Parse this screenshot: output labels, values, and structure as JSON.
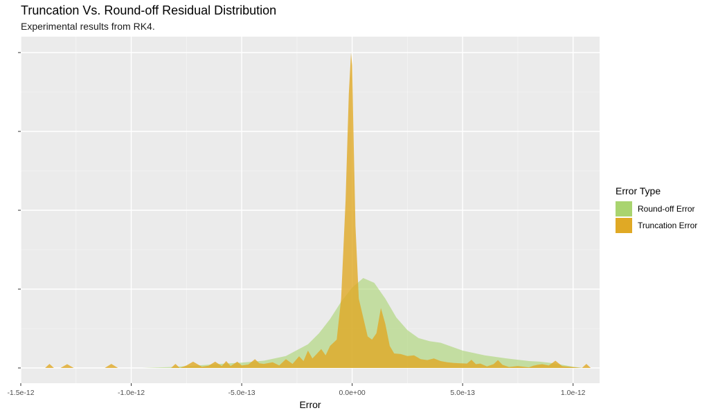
{
  "chart_data": {
    "type": "area",
    "title": "Truncation Vs. Round-off Residual Distribution",
    "subtitle": "Experimental results from RK4.",
    "xlabel": "Error",
    "ylabel": "",
    "xlim": [
      -1.5e-12,
      1.12e-12
    ],
    "ylim": [
      0,
      1.03
    ],
    "x_ticks": [
      -1.5e-12,
      -1e-12,
      -5e-13,
      0,
      5e-13,
      1e-12
    ],
    "x_tick_labels": [
      "-1.5e-12",
      "-1.0e-12",
      "-5.0e-13",
      "0.0e+00",
      "5.0e-13",
      "1.0e-12"
    ],
    "y_ticks": [
      0,
      0.25,
      0.5,
      0.75,
      1.0
    ],
    "grid": true,
    "legend": {
      "title": "Error Type",
      "position": "right"
    },
    "series": [
      {
        "name": "Round-off Error",
        "color": "#a9d46f",
        "x": [
          -1.38e-12,
          -9.5e-13,
          -8.2e-13,
          -7e-13,
          -6e-13,
          -5e-13,
          -4e-13,
          -3e-13,
          -2e-13,
          -1.5e-13,
          -1e-13,
          -5e-14,
          0,
          5e-14,
          1e-13,
          1.5e-13,
          2e-13,
          2.5e-13,
          3e-13,
          3.5e-13,
          4e-13,
          5e-13,
          6e-13,
          7e-13,
          8e-13,
          8.5e-13,
          9e-13,
          9.5e-13,
          1e-12,
          1.05e-12
        ],
        "y": [
          0.0,
          0.0,
          0.003,
          0.008,
          0.013,
          0.017,
          0.023,
          0.038,
          0.075,
          0.11,
          0.155,
          0.21,
          0.255,
          0.285,
          0.27,
          0.22,
          0.16,
          0.12,
          0.095,
          0.085,
          0.08,
          0.055,
          0.04,
          0.03,
          0.022,
          0.02,
          0.016,
          0.01,
          0.004,
          0.0
        ]
      },
      {
        "name": "Truncation Error",
        "color": "#e0a925",
        "x": [
          -1.39e-12,
          -1.37e-12,
          -1.35e-12,
          -1.32e-12,
          -1.29e-12,
          -1.26e-12,
          -1.12e-12,
          -1.09e-12,
          -1.06e-12,
          -8.2e-13,
          -8e-13,
          -7.8e-13,
          -7.5e-13,
          -7.2e-13,
          -6.8e-13,
          -6.5e-13,
          -6.2e-13,
          -5.9e-13,
          -5.7e-13,
          -5.5e-13,
          -5.2e-13,
          -5e-13,
          -4.7e-13,
          -4.4e-13,
          -4.2e-13,
          -4e-13,
          -3.6e-13,
          -3.3e-13,
          -3e-13,
          -2.7e-13,
          -2.4e-13,
          -2.2e-13,
          -2e-13,
          -1.8e-13,
          -1.6e-13,
          -1.4e-13,
          -1.2e-13,
          -1e-13,
          -7e-14,
          -5e-14,
          -3e-14,
          -1.5e-14,
          -5e-15,
          0,
          5e-15,
          1.5e-14,
          3e-14,
          5e-14,
          7e-14,
          9e-14,
          1.1e-13,
          1.3e-13,
          1.5e-13,
          1.7e-13,
          1.9e-13,
          2.2e-13,
          2.5e-13,
          2.8e-13,
          3.1e-13,
          3.4e-13,
          3.7e-13,
          4e-13,
          4.3e-13,
          4.6e-13,
          4.9e-13,
          5.2e-13,
          5.4e-13,
          5.6e-13,
          5.8e-13,
          6.1e-13,
          6.4e-13,
          6.6e-13,
          6.8e-13,
          7.1e-13,
          7.5e-13,
          8e-13,
          8.2e-13,
          8.4e-13,
          8.6e-13,
          8.9e-13,
          9.2e-13,
          9.5e-13,
          1.04e-12,
          1.06e-12,
          1.08e-12
        ],
        "y": [
          0.0,
          0.013,
          0.0,
          0.0,
          0.012,
          0.0,
          0.0,
          0.013,
          0.0,
          0.0,
          0.013,
          0.0,
          0.008,
          0.02,
          0.004,
          0.007,
          0.02,
          0.006,
          0.022,
          0.006,
          0.02,
          0.008,
          0.011,
          0.028,
          0.015,
          0.013,
          0.018,
          0.008,
          0.028,
          0.013,
          0.037,
          0.022,
          0.055,
          0.03,
          0.045,
          0.06,
          0.04,
          0.07,
          0.09,
          0.22,
          0.53,
          0.87,
          1.0,
          0.96,
          0.78,
          0.45,
          0.22,
          0.16,
          0.1,
          0.09,
          0.11,
          0.19,
          0.14,
          0.07,
          0.046,
          0.044,
          0.038,
          0.04,
          0.028,
          0.025,
          0.03,
          0.022,
          0.018,
          0.016,
          0.015,
          0.014,
          0.026,
          0.012,
          0.014,
          0.005,
          0.012,
          0.025,
          0.01,
          0.003,
          0.006,
          0.002,
          0.007,
          0.01,
          0.012,
          0.008,
          0.023,
          0.006,
          0.0,
          0.013,
          0.0
        ]
      }
    ]
  }
}
